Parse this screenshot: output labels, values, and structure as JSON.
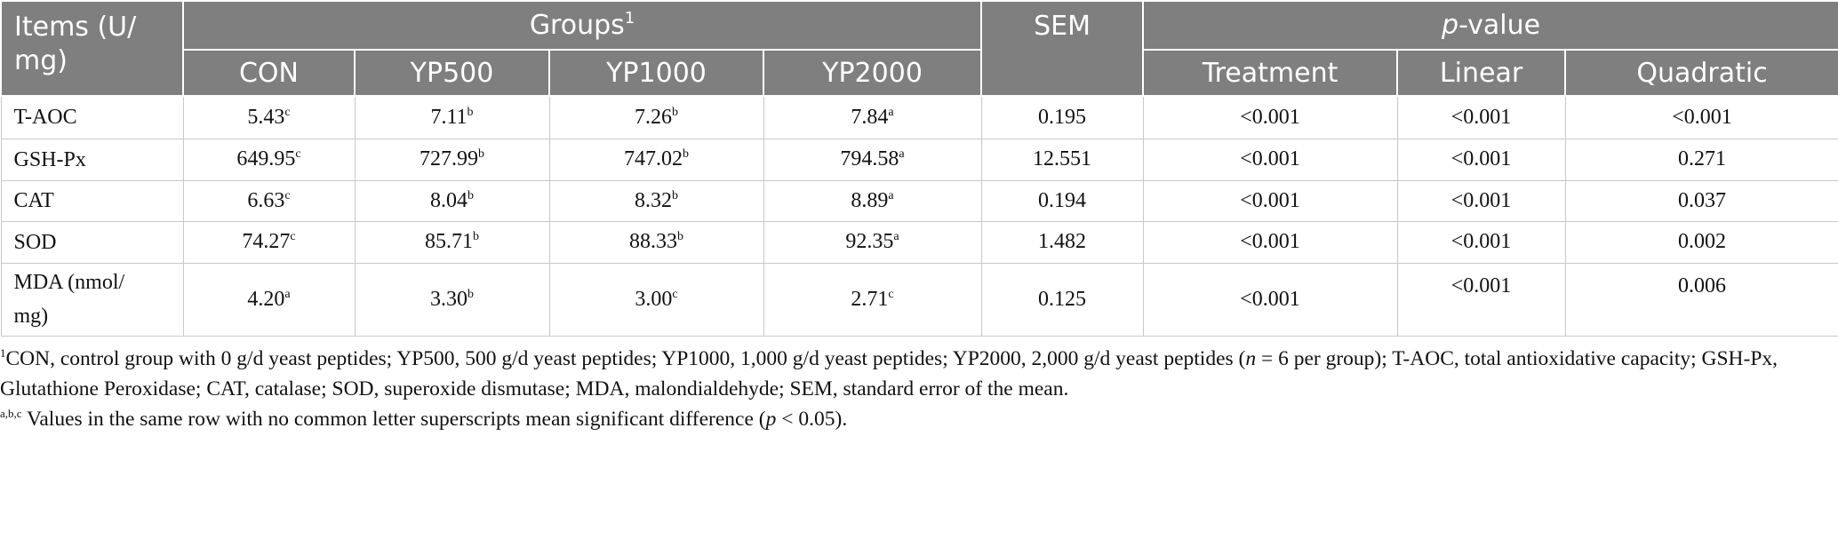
{
  "table": {
    "header": {
      "items": [
        "Items (U/",
        "mg)"
      ],
      "groups": {
        "text": "Groups",
        "sup": "1"
      },
      "sem": "SEM",
      "pvalue": {
        "italic": "p",
        "text": "-value"
      },
      "group_columns": [
        "CON",
        "YP500",
        "YP1000",
        "YP2000"
      ],
      "pvalue_columns": [
        "Treatment",
        "Linear",
        "Quadratic"
      ]
    },
    "rows": [
      {
        "item": [
          "T-AOC"
        ],
        "groups": [
          {
            "value": "5.43",
            "sup": "c"
          },
          {
            "value": "7.11",
            "sup": "b"
          },
          {
            "value": "7.26",
            "sup": "b"
          },
          {
            "value": "7.84",
            "sup": "a"
          }
        ],
        "sem": "0.195",
        "pvalues": [
          "<0.001",
          "<0.001",
          "<0.001"
        ]
      },
      {
        "item": [
          "GSH-Px"
        ],
        "groups": [
          {
            "value": "649.95",
            "sup": "c"
          },
          {
            "value": "727.99",
            "sup": "b"
          },
          {
            "value": "747.02",
            "sup": "b"
          },
          {
            "value": "794.58",
            "sup": "a"
          }
        ],
        "sem": "12.551",
        "pvalues": [
          "<0.001",
          "<0.001",
          "0.271"
        ]
      },
      {
        "item": [
          "CAT"
        ],
        "groups": [
          {
            "value": "6.63",
            "sup": "c"
          },
          {
            "value": "8.04",
            "sup": "b"
          },
          {
            "value": "8.32",
            "sup": "b"
          },
          {
            "value": "8.89",
            "sup": "a"
          }
        ],
        "sem": "0.194",
        "pvalues": [
          "<0.001",
          "<0.001",
          "0.037"
        ]
      },
      {
        "item": [
          "SOD"
        ],
        "groups": [
          {
            "value": "74.27",
            "sup": "c"
          },
          {
            "value": "85.71",
            "sup": "b"
          },
          {
            "value": "88.33",
            "sup": "b"
          },
          {
            "value": "92.35",
            "sup": "a"
          }
        ],
        "sem": "1.482",
        "pvalues": [
          "<0.001",
          "<0.001",
          "0.002"
        ]
      },
      {
        "item": [
          "MDA (nmol/",
          "mg)"
        ],
        "groups": [
          {
            "value": "4.20",
            "sup": "a"
          },
          {
            "value": "3.30",
            "sup": "b"
          },
          {
            "value": "3.00",
            "sup": "c"
          },
          {
            "value": "2.71",
            "sup": "c"
          }
        ],
        "sem": "0.125",
        "pvalues": [
          "<0.001",
          "<0.001",
          "0.006"
        ]
      }
    ]
  },
  "footnotes": [
    [
      {
        "sup": "1"
      },
      {
        "text": "CON, control group with 0 g/d yeast peptides; YP500, 500 g/d yeast peptides; YP1000, 1,000 g/d yeast peptides; YP2000, 2,000 g/d yeast peptides ("
      },
      {
        "italic": "n"
      },
      {
        "text": " = 6 per group); T-AOC, total antioxidative capacity; GSH-Px, Glutathione Peroxidase; CAT, catalase; SOD, superoxide dismutase; MDA, malondialdehyde; SEM, standard error of the mean."
      }
    ],
    [
      {
        "sup": "a,b,c"
      },
      {
        "text": " Values in the same row with no common letter superscripts mean significant difference ("
      },
      {
        "italic": "p"
      },
      {
        "text": " < 0.05)."
      }
    ]
  ]
}
